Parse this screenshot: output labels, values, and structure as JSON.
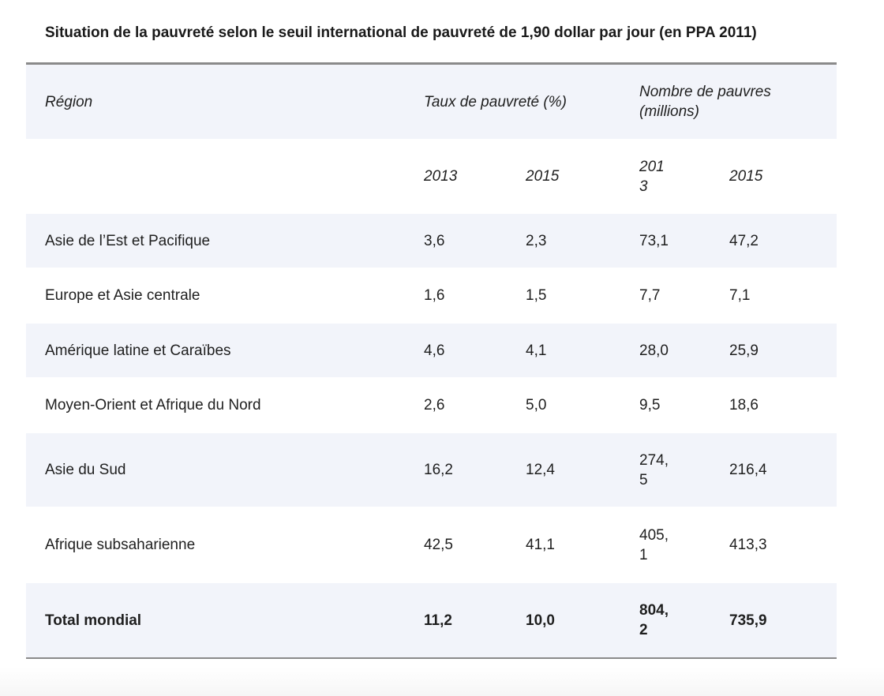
{
  "title": "Situation de la pauvreté selon le seuil international de pauvreté de 1,90 dollar par jour (en PPA 2011)",
  "header": {
    "region": "Région",
    "rate": "Taux de pauvreté (%)",
    "poor": "Nombre de pauvres (millions)"
  },
  "years": {
    "rate_2013": "2013",
    "rate_2015": "2015",
    "poor_2013": "2013",
    "poor_2015": "2015"
  },
  "rows": [
    {
      "region": "Asie de l’Est et Pacifique",
      "rate_2013": "3,6",
      "rate_2015": "2,3",
      "poor_2013": "73,1",
      "poor_2015": "47,2"
    },
    {
      "region": "Europe et Asie centrale",
      "rate_2013": "1,6",
      "rate_2015": "1,5",
      "poor_2013": "7,7",
      "poor_2015": "7,1"
    },
    {
      "region": "Amérique latine et Caraïbes",
      "rate_2013": "4,6",
      "rate_2015": "4,1",
      "poor_2013": "28,0",
      "poor_2015": "25,9"
    },
    {
      "region": "Moyen-Orient et Afrique du Nord",
      "rate_2013": "2,6",
      "rate_2015": "5,0",
      "poor_2013": "9,5",
      "poor_2015": "18,6"
    },
    {
      "region": "Asie du Sud",
      "rate_2013": "16,2",
      "rate_2015": "12,4",
      "poor_2013": "274,5",
      "poor_2015": "216,4"
    },
    {
      "region": "Afrique subsaharienne",
      "rate_2013": "42,5",
      "rate_2015": "41,1",
      "poor_2013": "405,1",
      "poor_2015": "413,3"
    }
  ],
  "total": {
    "region": "Total mondial",
    "rate_2013": "11,2",
    "rate_2015": "10,0",
    "poor_2013": "804,2",
    "poor_2015": "735,9"
  }
}
